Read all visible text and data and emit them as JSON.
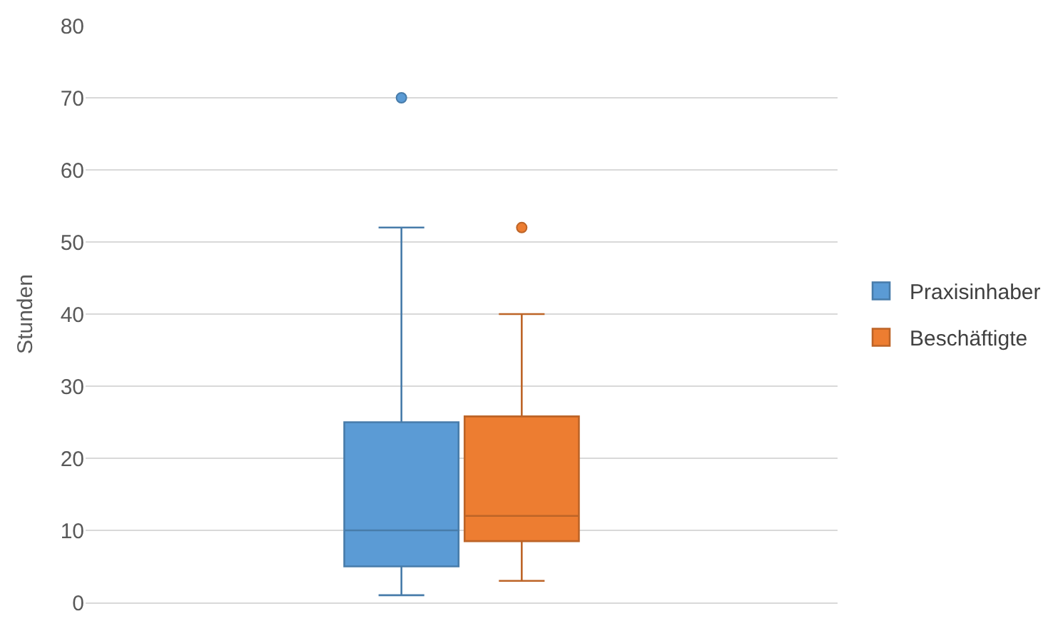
{
  "chart_data": {
    "type": "box",
    "ylabel": "Stunden",
    "categories": [
      null
    ],
    "series": [
      {
        "name": "Praxisinhaber",
        "color": "#5b9bd5",
        "boxes": [
          {
            "low": 1,
            "q1": 5,
            "median": 10,
            "q3": 25,
            "high": 52,
            "outliers": [
              70
            ]
          }
        ]
      },
      {
        "name": "Beschäftigte",
        "color": "#ed7d31",
        "boxes": [
          {
            "low": 3,
            "q1": 8.5,
            "median": 12,
            "q3": 25.8,
            "high": 40,
            "outliers": [
              52
            ]
          }
        ]
      }
    ],
    "ylim": [
      0,
      80
    ],
    "yticks": [
      0,
      10,
      20,
      30,
      40,
      50,
      60,
      70,
      80
    ],
    "grid": "y",
    "legend": "right",
    "marker": "circle"
  }
}
